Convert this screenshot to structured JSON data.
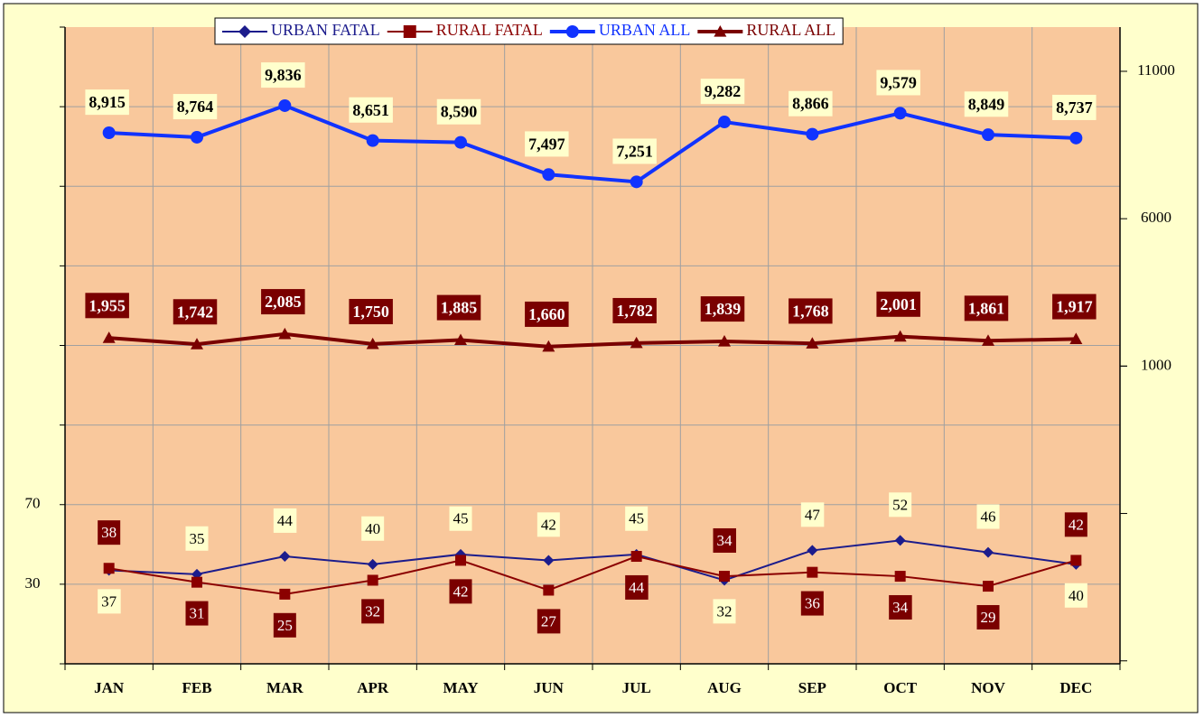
{
  "chart_data": {
    "type": "line",
    "categories": [
      "JAN",
      "FEB",
      "MAR",
      "APR",
      "MAY",
      "JUN",
      "JUL",
      "AUG",
      "SEP",
      "OCT",
      "NOV",
      "DEC"
    ],
    "ylim": [
      -10,
      310
    ],
    "yticks": [
      30,
      70
    ],
    "y2lim": [
      -9100,
      12500
    ],
    "y2ticks": [
      1000,
      6000,
      11000
    ],
    "grid": true,
    "legend": "top",
    "series": [
      {
        "name": "URBAN FATAL",
        "color": "#1c1c8c",
        "marker": "diamond",
        "values": [
          37,
          35,
          44,
          40,
          45,
          42,
          45,
          32,
          47,
          52,
          46,
          40
        ]
      },
      {
        "name": "RURAL FATAL",
        "color": "#8b0000",
        "marker": "square",
        "values": [
          38,
          31,
          25,
          32,
          42,
          27,
          44,
          34,
          36,
          34,
          29,
          42
        ]
      },
      {
        "name": "URBAN ALL",
        "color": "#1133ff",
        "marker": "circle",
        "axis": "y2",
        "values": [
          8915,
          8764,
          9836,
          8651,
          8590,
          7497,
          7251,
          9282,
          8866,
          9579,
          8849,
          8737
        ],
        "value_labels": [
          "8,915",
          "8,764",
          "9,836",
          "8,651",
          "8,590",
          "7,497",
          "7,251",
          "9,282",
          "8,866",
          "9,579",
          "8,849",
          "8,737"
        ]
      },
      {
        "name": "RURAL ALL",
        "color": "#7a0000",
        "marker": "triangle",
        "axis": "y2",
        "values": [
          1955,
          1742,
          2085,
          1750,
          1885,
          1660,
          1782,
          1839,
          1768,
          2001,
          1861,
          1917
        ],
        "value_labels": [
          "1,955",
          "1,742",
          "2,085",
          "1,750",
          "1,885",
          "1,660",
          "1,782",
          "1,839",
          "1,768",
          "2,001",
          "1,861",
          "1,917"
        ]
      }
    ]
  }
}
